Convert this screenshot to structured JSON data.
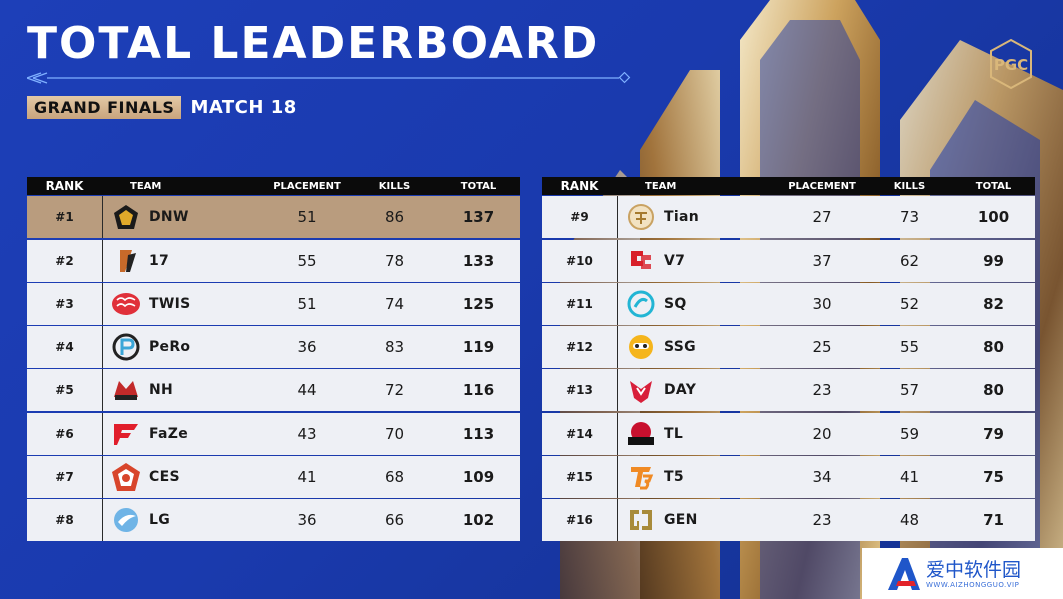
{
  "header": {
    "title": "TOTAL LEADERBOARD",
    "stage": "GRAND FINALS",
    "match": "MATCH 18",
    "logo_icon": "pgc-logo-icon"
  },
  "columns": {
    "rank": "RANK",
    "team": "TEAM",
    "placement": "PLACEMENT",
    "kills": "KILLS",
    "total": "TOTAL"
  },
  "left_board": [
    {
      "rank": "#1",
      "team": "DNW",
      "placement": "51",
      "kills": "86",
      "total": "137",
      "icon": "dnw-logo-icon"
    },
    {
      "rank": "#2",
      "team": "17",
      "placement": "55",
      "kills": "78",
      "total": "133",
      "icon": "17gaming-logo-icon"
    },
    {
      "rank": "#3",
      "team": "TWIS",
      "placement": "51",
      "kills": "74",
      "total": "125",
      "icon": "twis-logo-icon"
    },
    {
      "rank": "#4",
      "team": "PeRo",
      "placement": "36",
      "kills": "83",
      "total": "119",
      "icon": "pero-logo-icon"
    },
    {
      "rank": "#5",
      "team": "NH",
      "placement": "44",
      "kills": "72",
      "total": "116",
      "icon": "nh-logo-icon"
    },
    {
      "rank": "#6",
      "team": "FaZe",
      "placement": "43",
      "kills": "70",
      "total": "113",
      "icon": "faze-logo-icon"
    },
    {
      "rank": "#7",
      "team": "CES",
      "placement": "41",
      "kills": "68",
      "total": "109",
      "icon": "ces-logo-icon"
    },
    {
      "rank": "#8",
      "team": "LG",
      "placement": "36",
      "kills": "66",
      "total": "102",
      "icon": "lg-logo-icon"
    }
  ],
  "right_board": [
    {
      "rank": "#9",
      "team": "Tian",
      "placement": "27",
      "kills": "73",
      "total": "100",
      "icon": "tian-logo-icon"
    },
    {
      "rank": "#10",
      "team": "V7",
      "placement": "37",
      "kills": "62",
      "total": "99",
      "icon": "v7-logo-icon"
    },
    {
      "rank": "#11",
      "team": "SQ",
      "placement": "30",
      "kills": "52",
      "total": "82",
      "icon": "sq-logo-icon"
    },
    {
      "rank": "#12",
      "team": "SSG",
      "placement": "25",
      "kills": "55",
      "total": "80",
      "icon": "ssg-logo-icon"
    },
    {
      "rank": "#13",
      "team": "DAY",
      "placement": "23",
      "kills": "57",
      "total": "80",
      "icon": "day-logo-icon"
    },
    {
      "rank": "#14",
      "team": "TL",
      "placement": "20",
      "kills": "59",
      "total": "79",
      "icon": "tl-logo-icon"
    },
    {
      "rank": "#15",
      "team": "T5",
      "placement": "34",
      "kills": "41",
      "total": "75",
      "icon": "t5-logo-icon"
    },
    {
      "rank": "#16",
      "team": "GEN",
      "placement": "23",
      "kills": "48",
      "total": "71",
      "icon": "gen-logo-icon"
    }
  ],
  "watermark": {
    "main": "爱中软件园",
    "sub": "WWW.AIZHONGGUO.VIP",
    "icon": "watermark-a-icon"
  },
  "colors": {
    "background": "#1a3aae",
    "gold": "#c8a47d",
    "top_row": "#b99c7e",
    "row": "#eef0f5",
    "header": "#0b0b0b"
  }
}
